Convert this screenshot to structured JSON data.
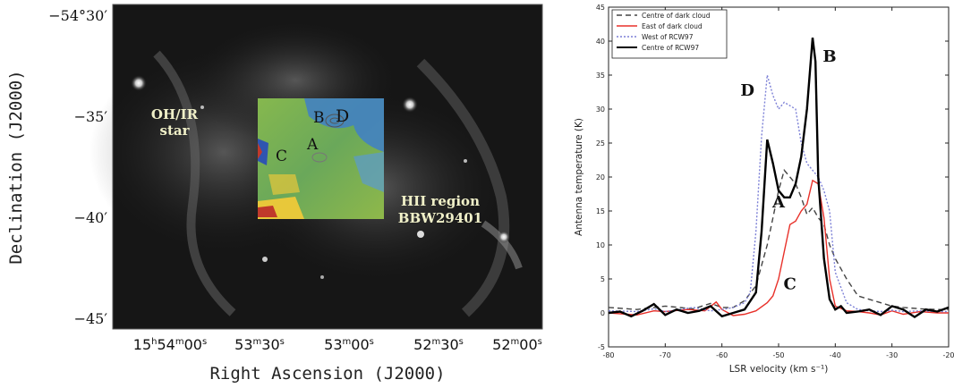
{
  "image_panel": {
    "ylabel": "Declination (J2000)",
    "xlabel": "Right Ascension (J2000)",
    "dec_ticks": [
      {
        "label": "−54°30′",
        "dec": -54.5
      },
      {
        "label": "−35′",
        "dec": -54.5833
      },
      {
        "label": "−40′",
        "dec": -54.6667
      },
      {
        "label": "−45′",
        "dec": -54.75
      }
    ],
    "ra_ticks": [
      {
        "label": "15h54m00s",
        "h": "15",
        "m": "54",
        "s": "00"
      },
      {
        "label": "53m30s",
        "m": "53",
        "s": "30"
      },
      {
        "label": "53m00s",
        "m": "53",
        "s": "00"
      },
      {
        "label": "52m30s",
        "m": "52",
        "s": "30"
      },
      {
        "label": "52m00s",
        "m": "52",
        "s": "00"
      }
    ],
    "annotations": {
      "ohir_line1": "OH/IR",
      "ohir_line2": "star",
      "hii_line1": "HII region",
      "hii_line2": "BBW29401",
      "labelA": "A",
      "labelB": "B",
      "labelC": "C",
      "labelD": "D"
    },
    "colors": {
      "background": "#141414",
      "overlay_green": "#7fb24a",
      "overlay_blue": "#3f7fc8",
      "overlay_yellow": "#e8c83a",
      "overlay_red": "#c0392b"
    }
  },
  "chart_data": {
    "type": "line",
    "xlabel": "LSR velocity (km s⁻¹)",
    "ylabel": "Antenna temperature (K)",
    "xlim": [
      -80,
      -20
    ],
    "ylim": [
      -5,
      45
    ],
    "xticks": [
      -80,
      -70,
      -60,
      -50,
      -40,
      -30,
      -20
    ],
    "yticks": [
      -5,
      0,
      5,
      10,
      15,
      20,
      25,
      30,
      35,
      40,
      45
    ],
    "legend_position": "top-left",
    "annotations": [
      {
        "text": "B",
        "x": -41,
        "y": 37
      },
      {
        "text": "D",
        "x": -55.5,
        "y": 32
      },
      {
        "text": "A",
        "x": -50,
        "y": 15.5
      },
      {
        "text": "C",
        "x": -48,
        "y": 3.5
      }
    ],
    "series": [
      {
        "name": "Centre of dark cloud",
        "color": "#444444",
        "dash": "6,4",
        "width": 1.4,
        "x": [
          -80,
          -75,
          -72,
          -70,
          -65,
          -62,
          -60,
          -58,
          -56,
          -54,
          -52,
          -51,
          -50,
          -49,
          -48,
          -47,
          -46,
          -45,
          -44,
          -43,
          -42,
          -41,
          -40,
          -38,
          -36,
          -34,
          -32,
          -30,
          -28,
          -25,
          -22,
          -20
        ],
        "y": [
          0.8,
          0.5,
          0.8,
          1,
          0.6,
          1.4,
          0.8,
          0.8,
          1.8,
          4,
          10,
          14,
          18,
          21,
          20,
          19,
          17,
          14.5,
          15.5,
          14,
          13,
          10,
          8,
          5,
          2.5,
          2,
          1.5,
          1,
          0.8,
          0.6,
          0.5,
          0.5
        ]
      },
      {
        "name": "East of dark cloud",
        "color": "#e8312a",
        "dash": "",
        "width": 1.4,
        "x": [
          -80,
          -75,
          -72,
          -70,
          -66,
          -63,
          -61,
          -60,
          -58,
          -56,
          -54,
          -52,
          -51,
          -50,
          -49,
          -48,
          -47,
          -46,
          -45,
          -44,
          -43,
          -42,
          -41,
          -40,
          -38,
          -36,
          -34,
          -32,
          -30,
          -28,
          -25,
          -22,
          -20
        ],
        "y": [
          0,
          -0.3,
          0.3,
          0.2,
          0.5,
          0.3,
          1.6,
          0.5,
          -0.4,
          -0.2,
          0.3,
          1.5,
          2.5,
          5,
          9,
          13,
          13.5,
          15,
          16,
          19.5,
          19,
          14,
          5,
          1,
          0.3,
          0.2,
          0,
          -0.3,
          0.3,
          -0.2,
          0.2,
          0,
          0
        ]
      },
      {
        "name": "West of RCW97",
        "color": "#7b7fd6",
        "dash": "2,2",
        "width": 1.4,
        "x": [
          -80,
          -75,
          -72,
          -70,
          -65,
          -62,
          -60,
          -58,
          -56,
          -55,
          -54,
          -53,
          -52,
          -51,
          -50,
          -49,
          -48,
          -47,
          -46,
          -45,
          -44,
          -43,
          -42,
          -41,
          -40,
          -38,
          -36,
          -34,
          -32,
          -30,
          -28,
          -25,
          -22,
          -20
        ],
        "y": [
          0.3,
          0.2,
          0.6,
          0.2,
          0.8,
          0.3,
          0.5,
          0.8,
          1.5,
          3,
          12,
          26,
          35,
          32,
          30,
          31,
          30.5,
          30,
          25,
          22,
          21,
          20,
          18,
          15,
          6,
          1.5,
          0.5,
          0.3,
          0.2,
          0.4,
          0.2,
          0.3,
          0.2,
          0.2
        ]
      },
      {
        "name": "Centre of RCW97",
        "color": "#000000",
        "dash": "",
        "width": 2.4,
        "x": [
          -80,
          -78,
          -76,
          -74,
          -72,
          -70,
          -68,
          -66,
          -64,
          -62,
          -60,
          -58,
          -56,
          -54,
          -53,
          -52,
          -51,
          -50,
          -49,
          -48,
          -47,
          -46,
          -45,
          -44,
          -43.5,
          -43,
          -42,
          -41,
          -40,
          -39,
          -38,
          -36,
          -34,
          -32,
          -30,
          -28,
          -26,
          -24,
          -22,
          -20
        ],
        "y": [
          0,
          0.2,
          -0.5,
          0.3,
          1.3,
          -0.3,
          0.5,
          0,
          0.3,
          1,
          -0.5,
          0,
          0.5,
          3,
          12,
          25.5,
          22,
          18,
          17,
          17,
          19,
          23,
          30,
          40.5,
          37,
          20,
          8,
          2,
          0.5,
          1,
          0,
          0.2,
          0.5,
          -0.3,
          1,
          0.5,
          -0.6,
          0.5,
          0.2,
          0.8
        ]
      }
    ]
  }
}
